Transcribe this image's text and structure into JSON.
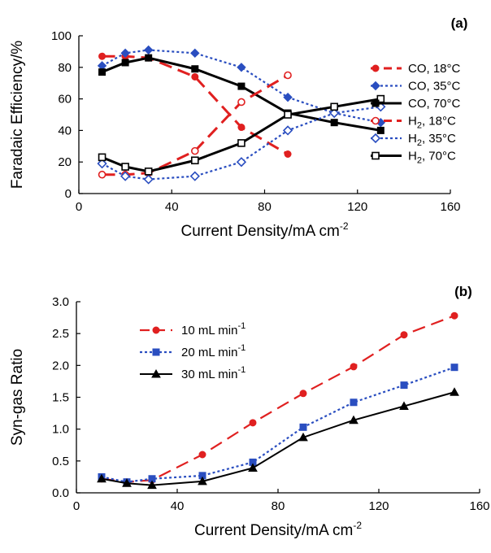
{
  "chart_data": [
    {
      "type": "line",
      "panel_label": "(a)",
      "xlabel": "Current Density/mA cm",
      "xlabel_sup": "-2",
      "ylabel": "Faradaic Efficiency/%",
      "xlim": [
        0,
        160
      ],
      "ylim": [
        0,
        100
      ],
      "xticks": [
        0,
        40,
        80,
        120,
        160
      ],
      "yticks": [
        0,
        20,
        40,
        60,
        80,
        100
      ],
      "legend_position": "right",
      "series": [
        {
          "name": "CO, 18°C",
          "label_main": "CO, 18°C",
          "label_sub": "",
          "label_rest": "",
          "color": "#e02020",
          "dash": "16 8",
          "marker": "circle",
          "filled": true,
          "x": [
            10,
            20,
            30,
            50,
            70,
            90
          ],
          "y": [
            87,
            87,
            86,
            74,
            42,
            25
          ]
        },
        {
          "name": "CO, 35°C",
          "label_main": "CO, 35°C",
          "label_sub": "",
          "label_rest": "",
          "color": "#2a4ec0",
          "dash": "3 3",
          "marker": "diamond",
          "filled": true,
          "x": [
            10,
            20,
            30,
            50,
            70,
            90,
            110,
            130
          ],
          "y": [
            81,
            89,
            91,
            89,
            80,
            61,
            51,
            45
          ]
        },
        {
          "name": "CO, 70°C",
          "label_main": "CO, 70°C",
          "label_sub": "",
          "label_rest": "",
          "color": "#000000",
          "dash": "",
          "marker": "square",
          "filled": true,
          "x": [
            10,
            20,
            30,
            50,
            70,
            90,
            110,
            130
          ],
          "y": [
            77,
            83,
            86,
            79,
            68,
            51,
            45,
            40
          ]
        },
        {
          "name": "H2, 18°C",
          "label_main": "H",
          "label_sub": "2",
          "label_rest": ", 18°C",
          "color": "#e02020",
          "dash": "16 8",
          "marker": "circle",
          "filled": false,
          "x": [
            10,
            20,
            30,
            50,
            70,
            90
          ],
          "y": [
            12,
            12,
            13,
            27,
            58,
            75
          ]
        },
        {
          "name": "H2, 35°C",
          "label_main": "H",
          "label_sub": "2",
          "label_rest": ", 35°C",
          "color": "#2a4ec0",
          "dash": "3 3",
          "marker": "diamond",
          "filled": false,
          "x": [
            10,
            20,
            30,
            50,
            70,
            90,
            110,
            130
          ],
          "y": [
            19,
            11,
            9,
            11,
            20,
            40,
            51,
            55
          ]
        },
        {
          "name": "H2, 70°C",
          "label_main": "H",
          "label_sub": "2",
          "label_rest": ", 70°C",
          "color": "#000000",
          "dash": "",
          "marker": "square",
          "filled": false,
          "x": [
            10,
            20,
            30,
            50,
            70,
            90,
            110,
            130
          ],
          "y": [
            23,
            17,
            14,
            21,
            32,
            50,
            55,
            60
          ]
        }
      ]
    },
    {
      "type": "line",
      "panel_label": "(b)",
      "xlabel": "Current Density/mA cm",
      "xlabel_sup": "-2",
      "ylabel": "Syn-gas Ratio",
      "xlim": [
        0,
        160
      ],
      "ylim": [
        0,
        3.0
      ],
      "xticks": [
        0,
        40,
        80,
        120,
        160
      ],
      "yticks": [
        0.0,
        0.5,
        1.0,
        1.5,
        2.0,
        2.5,
        3.0
      ],
      "legend_position": "top-left",
      "series": [
        {
          "name": "10 mL min-1",
          "label_main": "10 mL min",
          "label_sup": "-1",
          "color": "#e02020",
          "dash": "16 8",
          "marker": "circle",
          "filled": true,
          "x": [
            10,
            20,
            30,
            50,
            70,
            90,
            110,
            130,
            150
          ],
          "y": [
            0.22,
            0.17,
            0.2,
            0.6,
            1.1,
            1.56,
            1.98,
            2.48,
            2.78
          ]
        },
        {
          "name": "20 mL min-1",
          "label_main": "20 mL min",
          "label_sup": "-1",
          "color": "#2a4ec0",
          "dash": "3 3",
          "marker": "square",
          "filled": true,
          "x": [
            10,
            20,
            30,
            50,
            70,
            90,
            110,
            130,
            150
          ],
          "y": [
            0.25,
            0.17,
            0.22,
            0.27,
            0.48,
            1.03,
            1.42,
            1.69,
            1.97
          ]
        },
        {
          "name": "30 mL min-1",
          "label_main": "30 mL min",
          "label_sup": "-1",
          "color": "#000000",
          "dash": "",
          "marker": "triangle",
          "filled": true,
          "x": [
            10,
            20,
            30,
            50,
            70,
            90,
            110,
            130,
            150
          ],
          "y": [
            0.22,
            0.15,
            0.12,
            0.18,
            0.39,
            0.87,
            1.14,
            1.36,
            1.58
          ]
        }
      ]
    }
  ]
}
